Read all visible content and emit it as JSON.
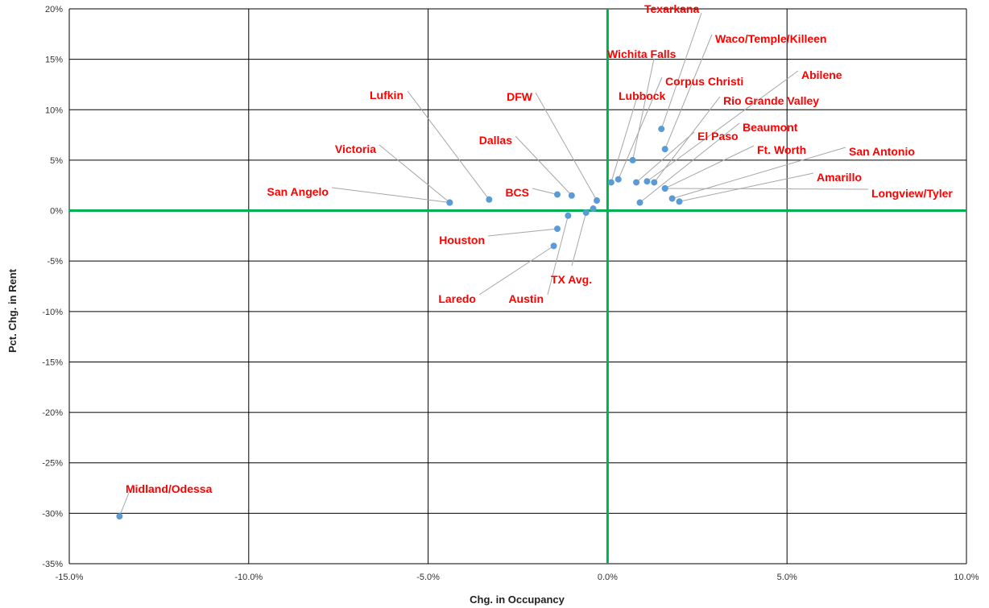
{
  "chart_data": {
    "type": "scatter",
    "title": "",
    "xlabel": "Chg. in Occupancy",
    "ylabel": "Pct. Chg. in Rent",
    "xlim": [
      -15,
      10
    ],
    "ylim": [
      -35,
      20
    ],
    "x_ticks": [
      -15,
      -10,
      -5,
      0,
      5,
      10
    ],
    "y_ticks": [
      -35,
      -30,
      -25,
      -20,
      -15,
      -10,
      -5,
      0,
      5,
      10,
      15,
      20
    ],
    "x_tick_labels": [
      "-15.0%",
      "-10.0%",
      "-5.0%",
      "0.0%",
      "5.0%",
      "10.0%"
    ],
    "y_tick_labels": [
      "-35%",
      "-30%",
      "-25%",
      "-20%",
      "-15%",
      "-10%",
      "-5%",
      "0%",
      "5%",
      "10%",
      "15%",
      "20%"
    ],
    "grid": true,
    "legend": "none",
    "colors": {
      "point": "#5b9bd5",
      "label": "#ff0000",
      "zero_axes": "#00b050",
      "grid": "#000000",
      "leader": "#a6a6a6"
    },
    "points": [
      {
        "name": "Texarkana",
        "x": 1.5,
        "y": 8.1
      },
      {
        "name": "Waco/Temple/Killeen",
        "x": 1.6,
        "y": 6.1
      },
      {
        "name": "Wichita Falls",
        "x": 0.7,
        "y": 5.0
      },
      {
        "name": "Corpus Christi",
        "x": 0.3,
        "y": 3.1
      },
      {
        "name": "Lubbock",
        "x": 0.1,
        "y": 2.8
      },
      {
        "name": "Abilene",
        "x": 1.1,
        "y": 2.9
      },
      {
        "name": "Rio Grande Valley",
        "x": 1.3,
        "y": 2.8
      },
      {
        "name": "El Paso",
        "x": 0.8,
        "y": 2.8
      },
      {
        "name": "Beaumont",
        "x": 0.9,
        "y": 0.8
      },
      {
        "name": "Ft. Worth",
        "x": 1.6,
        "y": 2.2
      },
      {
        "name": "San Antonio",
        "x": 1.8,
        "y": 1.2
      },
      {
        "name": "Amarillo",
        "x": 2.0,
        "y": 0.9
      },
      {
        "name": "Longview/Tyler",
        "x": 1.6,
        "y": 2.2
      },
      {
        "name": "DFW",
        "x": -0.3,
        "y": 1.0
      },
      {
        "name": "Dallas",
        "x": -1.0,
        "y": 1.5
      },
      {
        "name": "Lufkin",
        "x": -3.3,
        "y": 1.1
      },
      {
        "name": "Victoria",
        "x": -4.4,
        "y": 0.8
      },
      {
        "name": "San Angelo",
        "x": -4.4,
        "y": 0.8
      },
      {
        "name": "BCS",
        "x": -1.4,
        "y": 1.6
      },
      {
        "name": "Houston",
        "x": -1.4,
        "y": -1.8
      },
      {
        "name": "Laredo",
        "x": -1.5,
        "y": -3.5
      },
      {
        "name": "Austin",
        "x": -1.1,
        "y": -0.5
      },
      {
        "name": "TX Avg.",
        "x": -0.6,
        "y": -0.2
      },
      {
        "name": "",
        "x": -0.4,
        "y": 0.2
      },
      {
        "name": "Midland/Odessa",
        "x": -13.6,
        "y": -30.3
      }
    ]
  }
}
